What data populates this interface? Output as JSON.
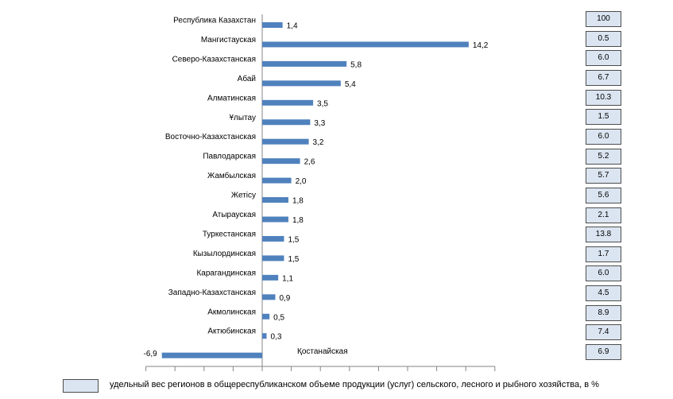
{
  "chart_data": {
    "type": "bar",
    "orientation": "horizontal",
    "categories": [
      "Республика Казахстан",
      "Мангистауская",
      "Северо-Казахстанская",
      "Абай",
      "Алматинская",
      "Ұлытау",
      "Восточно-Казахстанская",
      "Павлодарская",
      "Жамбылская",
      "Жетісу",
      "Атырауская",
      "Туркестанская",
      "Кызылординская",
      "Карагандинская",
      "Западно-Казахстанская",
      "Акмолинская",
      "Актюбинская",
      "Қостанайская"
    ],
    "values": [
      1.4,
      14.2,
      5.8,
      5.4,
      3.5,
      3.3,
      3.2,
      2.6,
      2.0,
      1.8,
      1.8,
      1.5,
      1.5,
      1.1,
      0.9,
      0.5,
      0.3,
      -6.9
    ],
    "value_labels": [
      "1,4",
      "14,2",
      "5,8",
      "5,4",
      "3,5",
      "3,3",
      "3,2",
      "2,6",
      "2,0",
      "1,8",
      "1,8",
      "1,5",
      "1,5",
      "1,1",
      "0,9",
      "0,5",
      "0,3",
      "-6,9"
    ],
    "share_labels": [
      "100",
      "0.5",
      "6.0",
      "6.7",
      "10.3",
      "1.5",
      "6.0",
      "5.2",
      "5.7",
      "5.6",
      "2.1",
      "13.8",
      "1.7",
      "6.0",
      "4.5",
      "8.9",
      "7.4",
      "6.9"
    ],
    "bar_color": "#4f81bd",
    "box_color": "#dbe5f1",
    "grid": false,
    "x_ticks": [
      -8,
      -6,
      -4,
      -2,
      0,
      2,
      4,
      6,
      8,
      10,
      12,
      14,
      16
    ],
    "legend": {
      "position": "bottom",
      "text": "удельный вес регионов в общереспубликанском объеме продукции (услуг) сельского, лесного и рыбного хозяйства, в %"
    }
  }
}
